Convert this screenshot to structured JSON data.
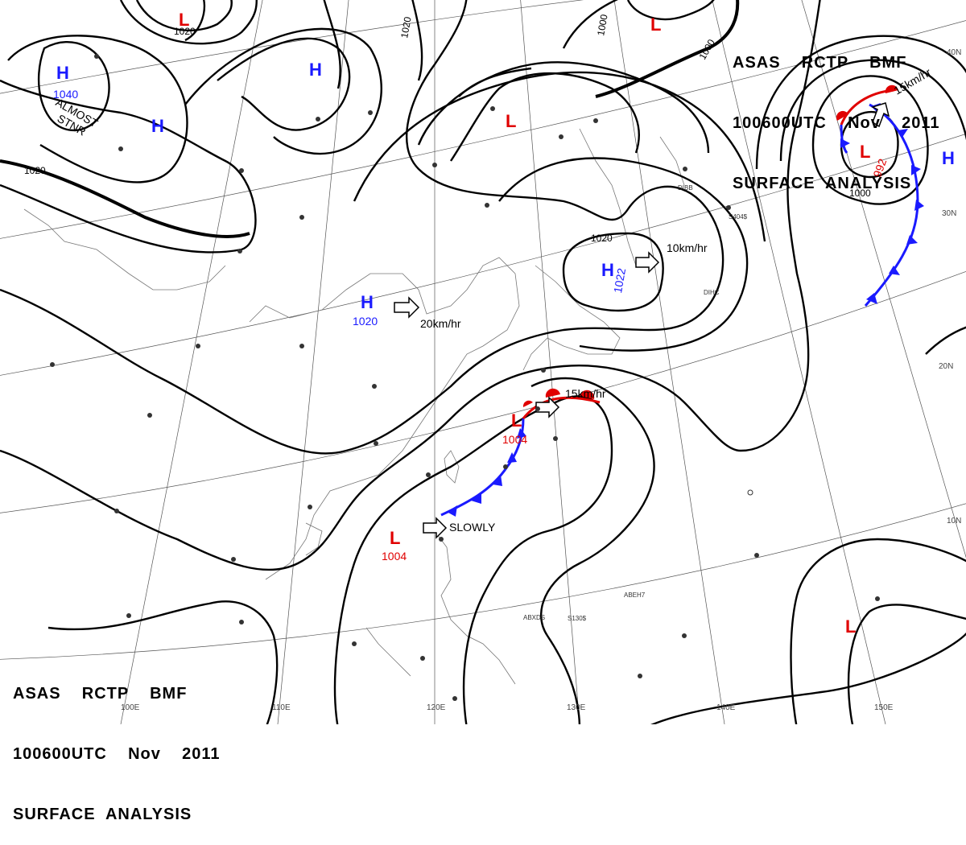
{
  "header_top": {
    "line1": "ASAS    RCTP    BMF",
    "line2": "100600UTC    Nov    2011",
    "line3": "SURFACE  ANALYSIS"
  },
  "header_bottom": {
    "line1": "ASAS    RCTP    BMF",
    "line2": "100600UTC    Nov    2011",
    "line3": "SURFACE  ANALYSIS"
  },
  "colors": {
    "high": "#1a1aff",
    "low": "#e00000",
    "cold_front": "#1a1aff",
    "warm_front": "#e00000",
    "isobar": "#000000"
  },
  "pressure_centers": [
    {
      "type": "H",
      "value": "1040",
      "color": "#1a1aff"
    },
    {
      "type": "H",
      "value": "",
      "color": "#1a1aff"
    },
    {
      "type": "H",
      "value": "",
      "color": "#1a1aff"
    },
    {
      "type": "H",
      "value": "1020",
      "color": "#1a1aff"
    },
    {
      "type": "H",
      "value": "1022",
      "color": "#1a1aff"
    },
    {
      "type": "H",
      "value": "",
      "color": "#1a1aff"
    },
    {
      "type": "L",
      "value": "",
      "color": "#e00000"
    },
    {
      "type": "L",
      "value": "",
      "color": "#e00000"
    },
    {
      "type": "L",
      "value": "",
      "color": "#e00000"
    },
    {
      "type": "L",
      "value": "992",
      "color": "#e00000"
    },
    {
      "type": "L",
      "value": "1004",
      "color": "#e00000"
    },
    {
      "type": "L",
      "value": "1004",
      "color": "#e00000"
    },
    {
      "type": "L",
      "value": "",
      "color": "#e00000"
    }
  ],
  "movements": [
    {
      "label": "20km/hr"
    },
    {
      "label": "10km/hr"
    },
    {
      "label": "15km/hr"
    },
    {
      "label": "15km/hr"
    },
    {
      "label": "SLOWLY"
    }
  ],
  "annotations": {
    "almost_stnr_1": "ALMOST",
    "almost_stnr_2": "STNR"
  },
  "isobar_labels": [
    "1020",
    "1020",
    "1020",
    "1000",
    "1000",
    "1020",
    "1000"
  ],
  "longitude_labels": [
    "100E",
    "110E",
    "120E",
    "130E",
    "140E",
    "150E"
  ],
  "latitude_labels": [
    "40N",
    "30N",
    "20N",
    "10N"
  ],
  "station_labels": [
    "DIBB",
    "DIHC",
    "ABXDS",
    "S130$",
    "ABEH7",
    "S404$"
  ]
}
